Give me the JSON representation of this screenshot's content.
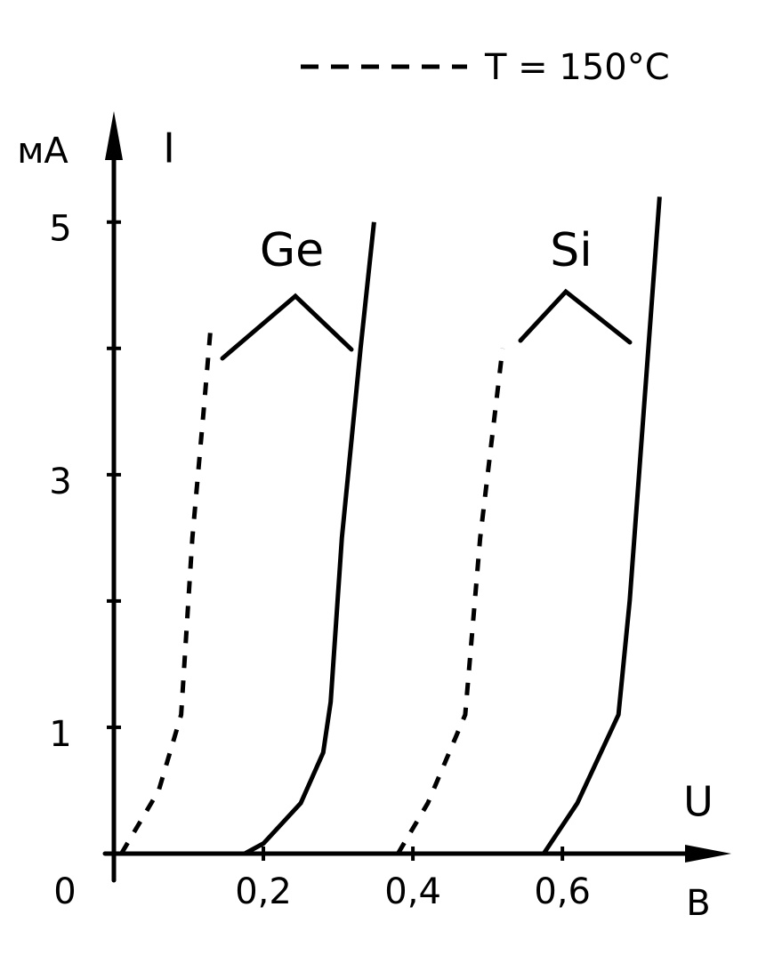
{
  "chart_data": {
    "type": "line",
    "x_label": "U",
    "x_unit": "В",
    "y_label": "I",
    "y_unit": "мА",
    "xlim": [
      0,
      0.82
    ],
    "ylim": [
      0,
      5.85
    ],
    "xticks": [
      0,
      {
        "value": 0.2,
        "label": "0,2"
      },
      {
        "value": 0.4,
        "label": "0,4"
      },
      {
        "value": 0.6,
        "label": "0,6"
      }
    ],
    "yticks": [
      1,
      3,
      5
    ],
    "yminor_ticks": [
      2,
      4
    ],
    "color": "#000000",
    "legend": {
      "label": "T = 150°C",
      "dash": "dashed",
      "position": "top-right"
    },
    "series": [
      {
        "name": "Ge",
        "x": [
          0.175,
          0.2,
          0.25,
          0.28,
          0.29,
          0.305,
          0.33,
          0.348
        ],
        "values": [
          0,
          0.08,
          0.4,
          0.8,
          1.2,
          2.5,
          4,
          5
        ],
        "hot_x": [
          0.01,
          0.06,
          0.09,
          0.105,
          0.12,
          0.13
        ],
        "hot_values": [
          0,
          0.5,
          1.1,
          2.5,
          3.5,
          4.2
        ]
      },
      {
        "name": "Si",
        "x": [
          0.575,
          0.62,
          0.675,
          0.69,
          0.71,
          0.73
        ],
        "values": [
          0,
          0.4,
          1.1,
          2,
          3.6,
          5.2
        ],
        "hot_x": [
          0.38,
          0.42,
          0.47,
          0.49,
          0.51,
          0.52
        ],
        "hot_values": [
          0,
          0.4,
          1.1,
          2.5,
          3.5,
          4
        ]
      }
    ]
  }
}
